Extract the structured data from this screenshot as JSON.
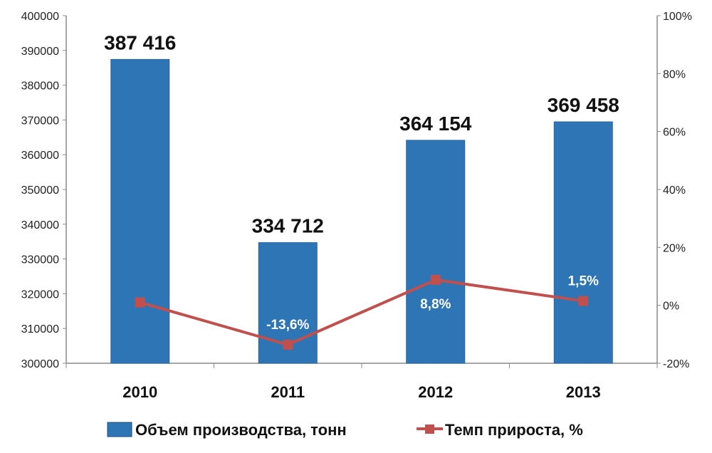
{
  "chart_data": {
    "type": "bar+line",
    "categories": [
      "2010",
      "2011",
      "2012",
      "2013"
    ],
    "series": [
      {
        "name": "Объем производства, тонн",
        "type": "bar",
        "axis": "left",
        "values": [
          387416,
          334712,
          364154,
          369458
        ],
        "labels": [
          "387 416",
          "334 712",
          "364 154",
          "369 458"
        ],
        "color": "#2E75B6"
      },
      {
        "name": "Темп прироста, %",
        "type": "line",
        "axis": "right",
        "values": [
          1.0,
          -13.6,
          8.8,
          1.5
        ],
        "labels": [
          "",
          "-13,6%",
          "8,8%",
          "1,5%"
        ],
        "color": "#C0504D"
      }
    ],
    "y_left": {
      "min": 300000,
      "max": 400000,
      "step": 10000,
      "ticks": [
        "300000",
        "310000",
        "320000",
        "330000",
        "340000",
        "350000",
        "360000",
        "370000",
        "380000",
        "390000",
        "400000"
      ]
    },
    "y_right": {
      "min": -20,
      "max": 100,
      "step": 20,
      "ticks": [
        "-20%",
        "0%",
        "20%",
        "40%",
        "60%",
        "80%",
        "100%"
      ]
    },
    "grid": false,
    "legend_position": "bottom"
  }
}
